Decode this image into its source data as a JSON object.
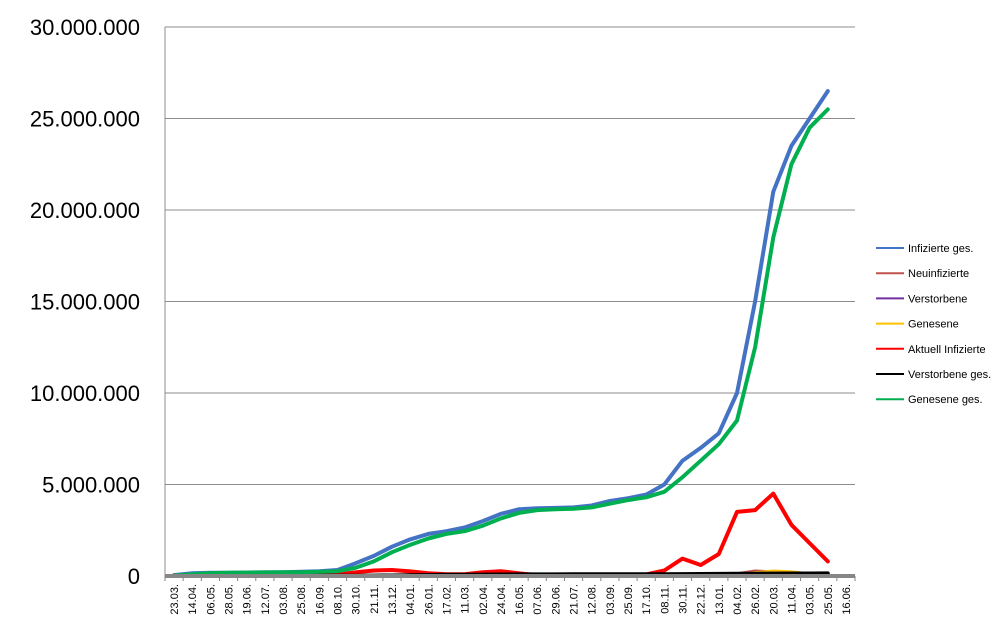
{
  "chart_data": {
    "type": "line",
    "title": "",
    "xlabel": "",
    "ylabel": "",
    "ylim": [
      0,
      30000000
    ],
    "y_ticks": [
      "30.000.000",
      "25.000.000",
      "20.000.000",
      "15.000.000",
      "10.000.000",
      "5.000.000",
      "0"
    ],
    "y_tick_values": [
      30000000,
      25000000,
      20000000,
      15000000,
      10000000,
      5000000,
      0
    ],
    "grid": "horizontal",
    "legend_position": "right",
    "categories": [
      "23.03.",
      "14.04.",
      "06.05.",
      "28.05.",
      "19.06.",
      "12.07.",
      "03.08.",
      "25.08.",
      "16.09.",
      "08.10.",
      "30.10.",
      "21.11.",
      "13.12.",
      "04.01.",
      "26.01.",
      "17.02.",
      "11.03.",
      "02.04.",
      "24.04.",
      "16.05.",
      "07.06.",
      "29.06.",
      "21.07.",
      "12.08.",
      "03.09.",
      "25.09.",
      "17.10.",
      "08.11.",
      "30.11.",
      "22.12.",
      "13.01.",
      "04.02.",
      "26.02.",
      "20.03.",
      "11.04.",
      "03.05.",
      "25.05.",
      "16.06."
    ],
    "series": [
      {
        "name": "Infizierte ges.",
        "color": "#4472c4",
        "values": [
          50000,
          150000,
          180000,
          180000,
          190000,
          200000,
          210000,
          230000,
          260000,
          330000,
          700000,
          1100000,
          1600000,
          2000000,
          2300000,
          2450000,
          2650000,
          3000000,
          3400000,
          3650000,
          3700000,
          3720000,
          3750000,
          3850000,
          4100000,
          4250000,
          4450000,
          5000000,
          6300000,
          7000000,
          7800000,
          10000000,
          15000000,
          21000000,
          23500000,
          25000000,
          26500000,
          null
        ]
      },
      {
        "name": "Neuinfizierte",
        "color": "#c0504d",
        "values": [
          5000,
          4000,
          2000,
          1000,
          1000,
          1000,
          2000,
          2000,
          3000,
          8000,
          15000,
          20000,
          25000,
          20000,
          15000,
          12000,
          15000,
          25000,
          30000,
          20000,
          5000,
          3000,
          2000,
          2000,
          3000,
          5000,
          8000,
          20000,
          40000,
          30000,
          50000,
          150000,
          300000,
          250000,
          150000,
          80000,
          40000,
          null
        ]
      },
      {
        "name": "Verstorbene",
        "color": "#7030a0",
        "values": [
          100,
          200,
          150,
          80,
          50,
          30,
          20,
          20,
          30,
          50,
          200,
          400,
          700,
          800,
          700,
          400,
          300,
          250,
          250,
          200,
          100,
          50,
          30,
          30,
          40,
          60,
          100,
          200,
          350,
          400,
          350,
          300,
          300,
          350,
          400,
          350,
          300,
          null
        ]
      },
      {
        "name": "Genesene",
        "color": "#ffc000",
        "values": [
          1000,
          3000,
          3000,
          2000,
          1000,
          1000,
          1000,
          2000,
          3000,
          5000,
          10000,
          18000,
          22000,
          23000,
          20000,
          15000,
          13000,
          20000,
          28000,
          25000,
          10000,
          4000,
          2000,
          2000,
          2500,
          4000,
          6000,
          12000,
          30000,
          40000,
          35000,
          60000,
          200000,
          300000,
          250000,
          150000,
          80000,
          null
        ]
      },
      {
        "name": "Aktuell Infizierte",
        "color": "#ff0000",
        "values": [
          30000,
          30000,
          15000,
          10000,
          10000,
          10000,
          15000,
          20000,
          30000,
          80000,
          200000,
          300000,
          330000,
          250000,
          150000,
          100000,
          100000,
          200000,
          260000,
          150000,
          50000,
          30000,
          20000,
          30000,
          60000,
          60000,
          80000,
          300000,
          950000,
          600000,
          1200000,
          3500000,
          3600000,
          4500000,
          2800000,
          1800000,
          800000,
          null
        ]
      },
      {
        "name": "Verstorbene ges.",
        "color": "#000000",
        "values": [
          1000,
          5000,
          8000,
          9000,
          9000,
          9000,
          9500,
          9500,
          9800,
          10000,
          13000,
          20000,
          30000,
          40000,
          55000,
          65000,
          72000,
          78000,
          83000,
          87000,
          89000,
          90000,
          91000,
          92000,
          93000,
          94000,
          96000,
          99000,
          104000,
          110000,
          116000,
          121000,
          125000,
          130000,
          134000,
          137000,
          140000,
          null
        ]
      },
      {
        "name": "Genesene ges.",
        "color": "#00b050",
        "values": [
          20000,
          100000,
          160000,
          175000,
          185000,
          190000,
          200000,
          210000,
          230000,
          260000,
          450000,
          800000,
          1300000,
          1700000,
          2050000,
          2300000,
          2450000,
          2750000,
          3150000,
          3450000,
          3600000,
          3650000,
          3680000,
          3750000,
          3950000,
          4150000,
          4300000,
          4600000,
          5400000,
          6300000,
          7200000,
          8500000,
          12500000,
          18500000,
          22500000,
          24500000,
          25500000,
          null
        ]
      }
    ]
  }
}
